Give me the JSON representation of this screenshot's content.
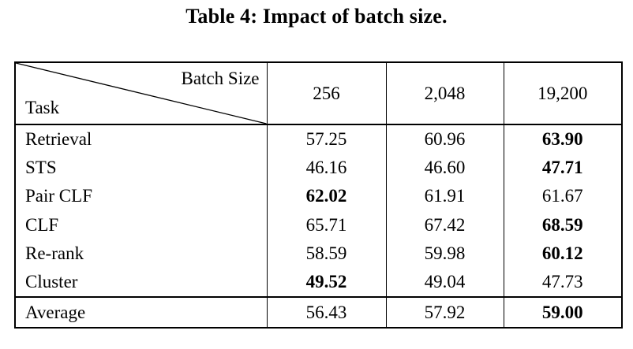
{
  "caption": "Table 4: Impact of batch size.",
  "table": {
    "corner": {
      "top_label": "Batch Size",
      "bottom_label": "Task"
    },
    "columns": [
      "256",
      "2,048",
      "19,200"
    ],
    "rows": [
      {
        "task": "Retrieval",
        "values": [
          "57.25",
          "60.96",
          "63.90"
        ],
        "bold": [
          false,
          false,
          true
        ]
      },
      {
        "task": "STS",
        "values": [
          "46.16",
          "46.60",
          "47.71"
        ],
        "bold": [
          false,
          false,
          true
        ]
      },
      {
        "task": "Pair CLF",
        "values": [
          "62.02",
          "61.91",
          "61.67"
        ],
        "bold": [
          true,
          false,
          false
        ]
      },
      {
        "task": "CLF",
        "values": [
          "65.71",
          "67.42",
          "68.59"
        ],
        "bold": [
          false,
          false,
          true
        ]
      },
      {
        "task": "Re-rank",
        "values": [
          "58.59",
          "59.98",
          "60.12"
        ],
        "bold": [
          false,
          false,
          true
        ]
      },
      {
        "task": "Cluster",
        "values": [
          "49.52",
          "49.04",
          "47.73"
        ],
        "bold": [
          true,
          false,
          false
        ]
      }
    ],
    "footer": {
      "task": "Average",
      "values": [
        "56.43",
        "57.92",
        "59.00"
      ],
      "bold": [
        false,
        false,
        true
      ]
    }
  },
  "colors": {
    "text": "#000000",
    "background": "#ffffff",
    "border": "#000000"
  }
}
